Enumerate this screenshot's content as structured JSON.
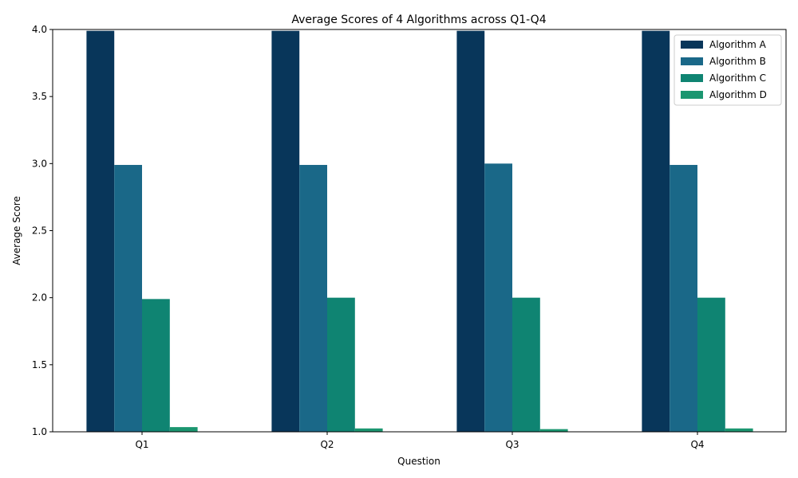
{
  "chart_data": {
    "type": "bar",
    "title": "Average Scores of 4 Algorithms across Q1-Q4",
    "xlabel": "Question",
    "ylabel": "Average Score",
    "categories": [
      "Q1",
      "Q2",
      "Q3",
      "Q4"
    ],
    "ylim": [
      1.0,
      4.0
    ],
    "yticks": [
      "1.0",
      "1.5",
      "2.0",
      "2.5",
      "3.0",
      "3.5",
      "4.0"
    ],
    "grid": false,
    "legend_position": "top-right",
    "series": [
      {
        "name": "Algorithm A",
        "color": "#08365a",
        "values": [
          3.99,
          3.99,
          3.99,
          3.99
        ]
      },
      {
        "name": "Algorithm B",
        "color": "#1a6888",
        "values": [
          2.99,
          2.99,
          3.0,
          2.99
        ]
      },
      {
        "name": "Algorithm C",
        "color": "#0f8472",
        "values": [
          1.99,
          2.0,
          2.0,
          2.0
        ]
      },
      {
        "name": "Algorithm D",
        "color": "#1b9670",
        "values": [
          1.035,
          1.025,
          1.02,
          1.025
        ]
      }
    ]
  }
}
